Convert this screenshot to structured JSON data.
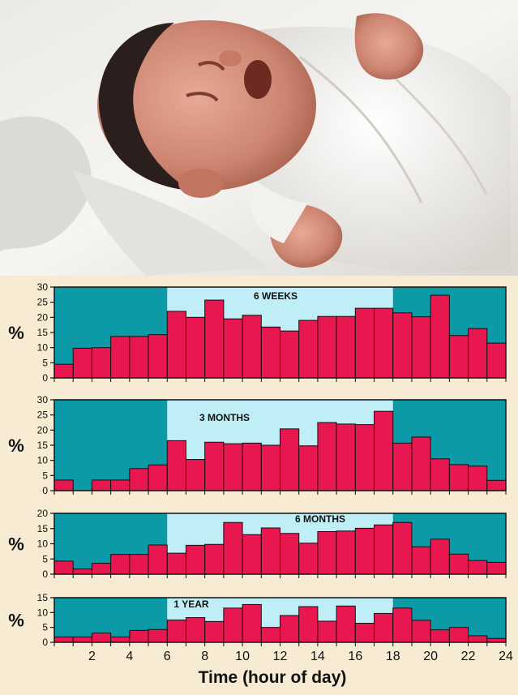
{
  "colors": {
    "night": "#0c9aa6",
    "day": "#bfeef6",
    "bar": "#e8174f",
    "background": "#f7ecd3"
  },
  "photo": {
    "subject": "crying-newborn-photo"
  },
  "chart_data": [
    {
      "type": "bar",
      "title": "6 WEEKS",
      "ylabel": "%",
      "ylim": [
        0,
        30
      ],
      "yticks": [
        0,
        5,
        10,
        15,
        20,
        25,
        30
      ],
      "x": [
        1,
        2,
        3,
        4,
        5,
        6,
        7,
        8,
        9,
        10,
        11,
        12,
        13,
        14,
        15,
        16,
        17,
        18,
        19,
        20,
        21,
        22,
        23,
        24
      ],
      "values": [
        4.5,
        9.8,
        10,
        13.7,
        13.7,
        14.3,
        22,
        20,
        25.7,
        19.5,
        20.7,
        16.8,
        15.5,
        19,
        20.3,
        20.3,
        23,
        23,
        21.5,
        20.2,
        27.3,
        14,
        16.3,
        11.5
      ],
      "day_period": [
        6,
        18
      ],
      "grid": false
    },
    {
      "type": "bar",
      "title": "3 MONTHS",
      "ylabel": "%",
      "ylim": [
        0,
        30
      ],
      "yticks": [
        0,
        5,
        10,
        15,
        20,
        25,
        30
      ],
      "x": [
        1,
        2,
        3,
        4,
        5,
        6,
        7,
        8,
        9,
        10,
        11,
        12,
        13,
        14,
        15,
        16,
        17,
        18,
        19,
        20,
        21,
        22,
        23,
        24
      ],
      "values": [
        3.5,
        0,
        3.5,
        3.5,
        7.3,
        8.5,
        16.5,
        10.3,
        16,
        15.5,
        15.7,
        15,
        20.4,
        14.8,
        22.5,
        22,
        21.8,
        26.2,
        15.7,
        17.7,
        10.5,
        8.6,
        8.1,
        3.4
      ],
      "day_period": [
        6,
        18
      ],
      "grid": false
    },
    {
      "type": "bar",
      "title": "6 MONTHS",
      "ylabel": "%",
      "ylim": [
        0,
        20
      ],
      "yticks": [
        0,
        5,
        10,
        15,
        20
      ],
      "x": [
        1,
        2,
        3,
        4,
        5,
        6,
        7,
        8,
        9,
        10,
        11,
        12,
        13,
        14,
        15,
        16,
        17,
        18,
        19,
        20,
        21,
        22,
        23,
        24
      ],
      "values": [
        4.3,
        1.7,
        3.6,
        6.5,
        6.5,
        9.6,
        6.9,
        9.5,
        9.8,
        17,
        13,
        15.2,
        13.4,
        10.2,
        14,
        14.2,
        15.1,
        16.2,
        17,
        9,
        11.5,
        6.6,
        4.5,
        3.9
      ],
      "day_period": [
        6,
        18
      ],
      "grid": false
    },
    {
      "type": "bar",
      "title": "1 YEAR",
      "ylabel": "%",
      "xlabel": "Time (hour of day)",
      "ylim": [
        0,
        15
      ],
      "yticks": [
        0,
        5,
        10,
        15
      ],
      "x": [
        1,
        2,
        3,
        4,
        5,
        6,
        7,
        8,
        9,
        10,
        11,
        12,
        13,
        14,
        15,
        16,
        17,
        18,
        19,
        20,
        21,
        22,
        23,
        24
      ],
      "xticks": [
        2,
        4,
        6,
        8,
        10,
        12,
        14,
        16,
        18,
        20,
        22,
        24
      ],
      "values": [
        1.8,
        1.8,
        3.1,
        1.8,
        4,
        4.3,
        7.5,
        8.3,
        7,
        11.5,
        12.7,
        5,
        9,
        12,
        7.1,
        12.2,
        6.4,
        9.7,
        11.5,
        7.4,
        4.2,
        5,
        2.2,
        1.3
      ],
      "day_period": [
        6,
        18
      ],
      "grid": false
    }
  ]
}
